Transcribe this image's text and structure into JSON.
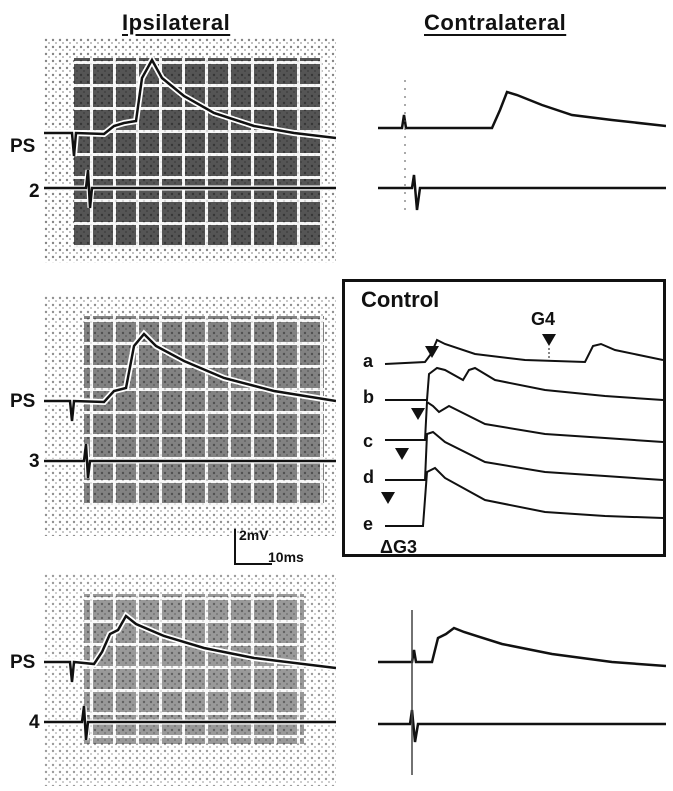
{
  "headers": {
    "ipsilateral": "Ipsilateral",
    "contralateral": "Contralateral"
  },
  "rows": [
    {
      "ps_label": "PS",
      "number": "2"
    },
    {
      "ps_label": "PS",
      "number": "3"
    },
    {
      "ps_label": "PS",
      "number": "4"
    }
  ],
  "control": {
    "title": "Control",
    "traces": [
      "a",
      "b",
      "c",
      "d",
      "e"
    ],
    "marker_top": "G4",
    "marker_bottom": "ΔG3"
  },
  "scale_bar": {
    "voltage": "2mV",
    "time": "10ms"
  }
}
